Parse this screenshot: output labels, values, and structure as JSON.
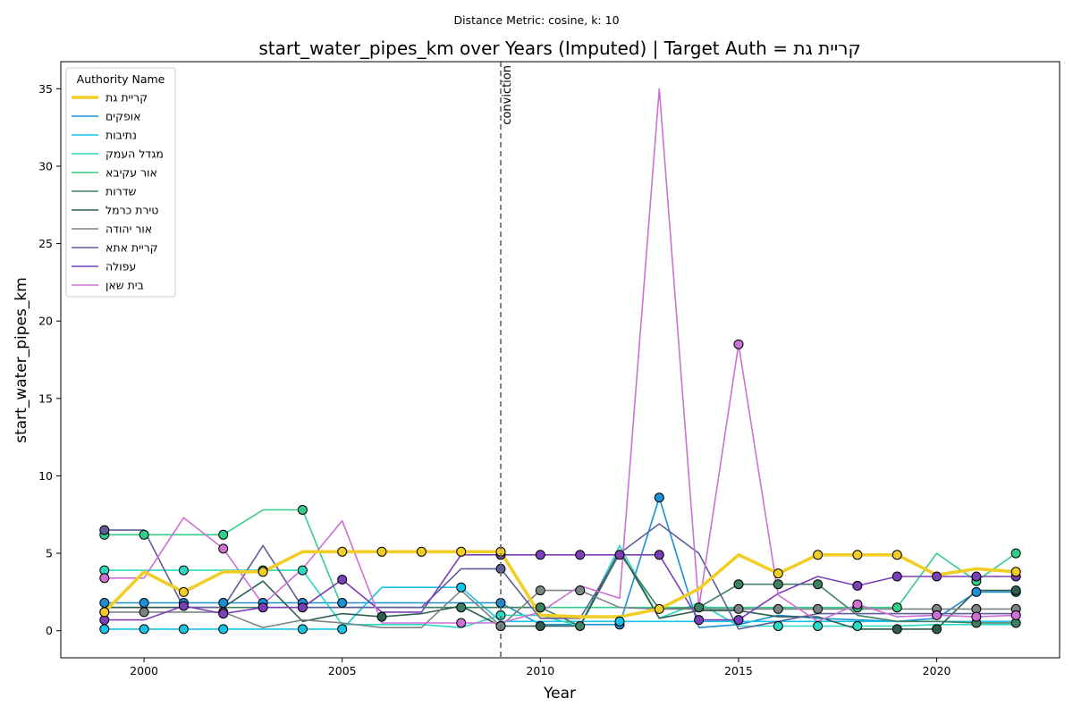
{
  "chart_data": {
    "type": "line",
    "suptitle": "Distance Metric: cosine, k: 10",
    "title": "start_water_pipes_km over Years (Imputed) | Target Auth = קריית גת",
    "xlabel": "Year",
    "ylabel": "start_water_pipes_km",
    "xlim": [
      1997.9,
      2023.1
    ],
    "ylim": [
      -1.75,
      36.75
    ],
    "xticks": [
      2000,
      2005,
      2010,
      2015,
      2020
    ],
    "yticks": [
      0,
      5,
      10,
      15,
      20,
      25,
      30,
      35
    ],
    "grid": false,
    "legend": {
      "title": "Authority Name",
      "position": "top-left"
    },
    "vline": {
      "x": 2009,
      "label": "conviction"
    },
    "x": [
      1999,
      2000,
      2001,
      2002,
      2003,
      2004,
      2005,
      2006,
      2007,
      2008,
      2009,
      2010,
      2011,
      2012,
      2013,
      2014,
      2015,
      2016,
      2017,
      2018,
      2019,
      2020,
      2021,
      2022
    ],
    "series": [
      {
        "name": "קריית גת",
        "color": "#f2cd25",
        "target": true,
        "values": [
          1.2,
          3.8,
          2.5,
          3.8,
          3.8,
          5.1,
          5.1,
          5.1,
          5.1,
          5.1,
          5.1,
          1.0,
          0.9,
          0.9,
          1.4,
          2.7,
          4.9,
          3.7,
          4.9,
          4.9,
          4.9,
          3.6,
          4.0,
          3.8
        ],
        "markers": [
          1999,
          2001,
          2003,
          2005,
          2006,
          2007,
          2008,
          2009,
          2013,
          2016,
          2017,
          2018,
          2019,
          2022
        ]
      },
      {
        "name": "אופקים",
        "color": "#1b8fd6",
        "values": [
          1.8,
          1.8,
          1.8,
          1.8,
          1.8,
          1.8,
          1.8,
          1.8,
          1.8,
          1.8,
          1.8,
          0.4,
          0.4,
          0.4,
          8.6,
          0.2,
          0.4,
          1.0,
          0.8,
          0.7,
          0.6,
          0.8,
          2.5,
          2.5
        ],
        "markers": [
          1999,
          2000,
          2001,
          2002,
          2003,
          2004,
          2005,
          2009,
          2012,
          2013,
          2021,
          2022
        ]
      },
      {
        "name": "נתיבות",
        "color": "#17c3e6",
        "values": [
          0.1,
          0.1,
          0.1,
          0.1,
          0.1,
          0.1,
          0.1,
          2.8,
          2.8,
          2.8,
          0.6,
          0.6,
          0.6,
          0.6,
          0.6,
          0.6,
          0.6,
          0.6,
          0.6,
          0.6,
          0.6,
          0.6,
          0.6,
          0.6
        ],
        "markers": [
          1999,
          2000,
          2001,
          2002,
          2004,
          2005,
          2008,
          2012
        ]
      },
      {
        "name": "מגדל העמק",
        "color": "#2ad8c4",
        "values": [
          3.9,
          3.9,
          3.9,
          3.9,
          3.9,
          3.9,
          0.4,
          0.4,
          0.4,
          0.2,
          1.0,
          1.0,
          0.3,
          5.5,
          0.8,
          1.8,
          0.3,
          0.3,
          0.3,
          0.3,
          0.3,
          0.4,
          0.4,
          0.4
        ],
        "markers": [
          1999,
          2001,
          2003,
          2004,
          2009,
          2016,
          2017,
          2018
        ]
      },
      {
        "name": "אור עקיבא",
        "color": "#33cc88",
        "values": [
          6.2,
          6.2,
          6.2,
          6.2,
          7.8,
          7.8,
          1.5,
          1.5,
          1.5,
          1.5,
          1.5,
          1.5,
          1.5,
          1.5,
          1.5,
          1.5,
          1.5,
          1.5,
          1.5,
          1.5,
          1.5,
          5.0,
          3.2,
          5.0
        ],
        "markers": [
          1999,
          2000,
          2002,
          2004,
          2010,
          2018,
          2019,
          2021,
          2022
        ]
      },
      {
        "name": "שדרות",
        "color": "#3d8062",
        "values": [
          1.5,
          1.5,
          1.5,
          1.5,
          1.5,
          1.5,
          1.5,
          1.5,
          1.5,
          1.5,
          1.5,
          1.5,
          0.3,
          5.0,
          1.4,
          1.5,
          3.0,
          3.0,
          3.0,
          1.0,
          0.6,
          0.6,
          0.5,
          0.5
        ],
        "markers": [
          2008,
          2010,
          2011,
          2014,
          2015,
          2016,
          2017,
          2021,
          2022
        ]
      },
      {
        "name": "טירת כרמל",
        "color": "#2e5e50",
        "values": [
          1.5,
          1.5,
          1.5,
          1.5,
          3.2,
          0.6,
          1.1,
          0.9,
          1.1,
          1.6,
          0.3,
          0.3,
          0.3,
          5.2,
          0.8,
          1.3,
          1.3,
          0.9,
          0.9,
          0.1,
          0.1,
          0.1,
          2.6,
          2.6
        ],
        "markers": [
          2006,
          2009,
          2010,
          2019,
          2020,
          2022
        ]
      },
      {
        "name": "אור יהודה",
        "color": "#7b8484",
        "values": [
          1.2,
          1.2,
          1.2,
          1.2,
          0.2,
          0.7,
          0.5,
          0.2,
          0.2,
          2.6,
          0.3,
          2.6,
          2.6,
          1.5,
          1.4,
          1.4,
          1.4,
          1.4,
          1.4,
          1.4,
          1.4,
          1.4,
          1.4,
          1.4
        ],
        "markers": [
          1999,
          2000,
          2002,
          2009,
          2010,
          2011,
          2015,
          2016,
          2017,
          2020,
          2021,
          2022
        ]
      },
      {
        "name": "קריית אתא",
        "color": "#5d5e9a",
        "values": [
          6.5,
          6.5,
          1.5,
          1.5,
          5.5,
          1.5,
          1.5,
          1.5,
          1.5,
          4.0,
          4.0,
          0.8,
          0.8,
          5.0,
          6.9,
          5.0,
          0.1,
          0.6,
          1.1,
          1.1,
          1.1,
          1.1,
          1.1,
          1.1
        ],
        "markers": [
          1999,
          2009
        ]
      },
      {
        "name": "עפולה",
        "color": "#7b3fb8",
        "values": [
          0.7,
          0.7,
          1.6,
          1.1,
          1.5,
          1.5,
          3.3,
          1.2,
          1.2,
          4.9,
          4.9,
          4.9,
          4.9,
          4.9,
          4.9,
          0.7,
          0.7,
          2.4,
          3.5,
          2.9,
          3.5,
          3.5,
          3.5,
          3.5
        ],
        "markers": [
          1999,
          2001,
          2002,
          2003,
          2004,
          2005,
          2009,
          2010,
          2011,
          2012,
          2013,
          2014,
          2015,
          2018,
          2019,
          2020,
          2021,
          2022
        ]
      },
      {
        "name": "בית שאן",
        "color": "#cc70d2",
        "values": [
          3.4,
          3.4,
          7.3,
          5.3,
          1.7,
          4.0,
          7.1,
          0.5,
          0.5,
          0.5,
          0.5,
          1.2,
          2.9,
          2.1,
          35.0,
          1.5,
          18.5,
          2.3,
          0.6,
          1.7,
          0.9,
          1.0,
          0.9,
          1.0
        ],
        "markers": [
          1999,
          2002,
          2008,
          2015,
          2018,
          2020,
          2021,
          2022
        ]
      }
    ]
  }
}
